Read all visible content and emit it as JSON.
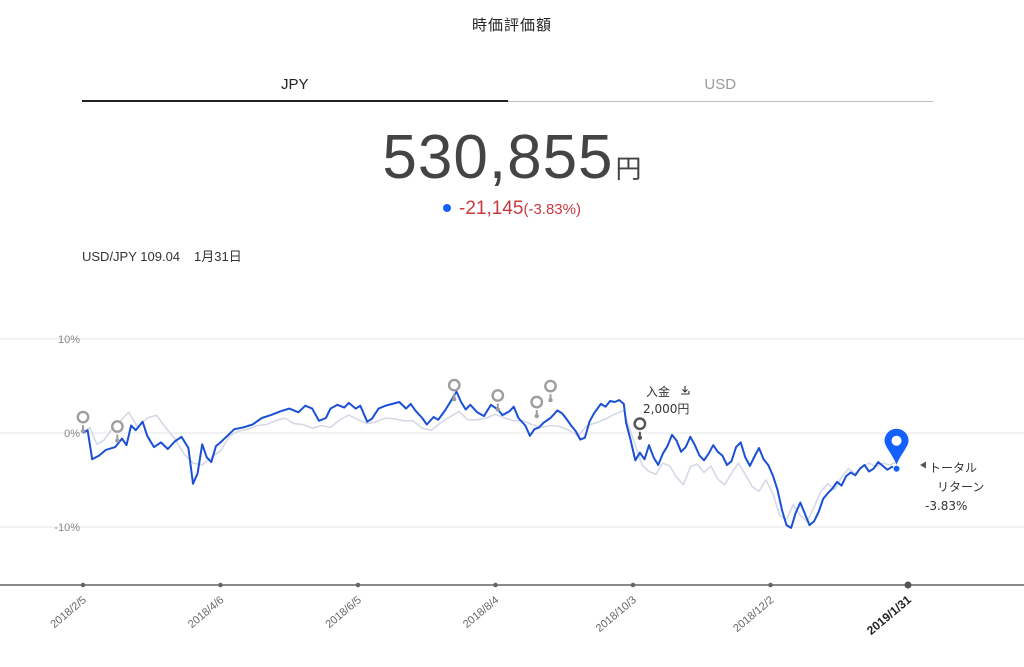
{
  "page_title": "時価評価額",
  "tabs": [
    {
      "label": "JPY",
      "active": true
    },
    {
      "label": "USD",
      "active": false
    }
  ],
  "valuation": {
    "amount": "530,855",
    "unit": "円",
    "change": "-21,145",
    "change_pct": "(-3.83%)"
  },
  "fx": {
    "pair": "USD/JPY 109.04",
    "date": "1月31日"
  },
  "colors": {
    "portfolio_line": "#1a4fd6",
    "benchmark_line": "#d5d9e6",
    "negative": "#c8383f",
    "marker_gray": "#9e9e9e",
    "marker_dark": "#555555",
    "marker_current": "#1460ff"
  },
  "annotations": {
    "deposit_label": "入金",
    "deposit_amount": "2,000円",
    "total_return_line1": "トータル",
    "total_return_line2": "リターン",
    "total_return_value": "-3.83%"
  },
  "chart_data": {
    "type": "line",
    "ylim": [
      -15,
      10
    ],
    "y_ticks": [
      {
        "value": 10,
        "label": "10%"
      },
      {
        "value": 0,
        "label": "0%"
      },
      {
        "value": -10,
        "label": "-10%"
      }
    ],
    "x_range": [
      0,
      360
    ],
    "x_ticks": [
      {
        "x": 0,
        "label": "2018/2/5",
        "bold": false
      },
      {
        "x": 60,
        "label": "2018/4/6",
        "bold": false
      },
      {
        "x": 120,
        "label": "2018/6/5",
        "bold": false
      },
      {
        "x": 180,
        "label": "2018/8/4",
        "bold": false
      },
      {
        "x": 240,
        "label": "2018/10/3",
        "bold": false
      },
      {
        "x": 300,
        "label": "2018/12/2",
        "bold": false
      },
      {
        "x": 360,
        "label": "2019/1/31",
        "bold": true
      }
    ],
    "series": [
      {
        "role": "portfolio",
        "points": [
          [
            0,
            0
          ],
          [
            2,
            0.3
          ],
          [
            4,
            -2.8
          ],
          [
            7,
            -2.4
          ],
          [
            10,
            -1.8
          ],
          [
            14,
            -1.5
          ],
          [
            17,
            -0.6
          ],
          [
            19,
            -1.3
          ],
          [
            21,
            0.8
          ],
          [
            23,
            0.3
          ],
          [
            26,
            1.2
          ],
          [
            28,
            -0.3
          ],
          [
            31,
            -1.5
          ],
          [
            34,
            -1.0
          ],
          [
            37,
            -1.7
          ],
          [
            40,
            -0.9
          ],
          [
            43,
            -0.4
          ],
          [
            46,
            -1.6
          ],
          [
            48,
            -5.4
          ],
          [
            50,
            -4.3
          ],
          [
            52,
            -1.2
          ],
          [
            54,
            -2.6
          ],
          [
            56,
            -3.1
          ],
          [
            58,
            -1.4
          ],
          [
            60,
            -1.0
          ],
          [
            63,
            -0.3
          ],
          [
            66,
            0.4
          ],
          [
            70,
            0.6
          ],
          [
            74,
            0.9
          ],
          [
            78,
            1.6
          ],
          [
            82,
            1.9
          ],
          [
            86,
            2.3
          ],
          [
            90,
            2.6
          ],
          [
            94,
            2.2
          ],
          [
            97,
            2.9
          ],
          [
            100,
            2.6
          ],
          [
            103,
            1.3
          ],
          [
            106,
            1.6
          ],
          [
            108,
            2.6
          ],
          [
            111,
            3.0
          ],
          [
            114,
            2.7
          ],
          [
            116,
            3.2
          ],
          [
            119,
            2.6
          ],
          [
            121,
            2.9
          ],
          [
            124,
            1.2
          ],
          [
            126,
            1.5
          ],
          [
            129,
            2.6
          ],
          [
            132,
            2.9
          ],
          [
            135,
            3.1
          ],
          [
            138,
            3.3
          ],
          [
            141,
            2.6
          ],
          [
            143,
            3.1
          ],
          [
            145,
            2.4
          ],
          [
            148,
            1.6
          ],
          [
            150,
            0.9
          ],
          [
            153,
            1.7
          ],
          [
            155,
            1.4
          ],
          [
            158,
            2.4
          ],
          [
            161,
            3.6
          ],
          [
            163,
            4.4
          ],
          [
            165,
            3.3
          ],
          [
            167,
            2.5
          ],
          [
            169,
            3.0
          ],
          [
            172,
            2.2
          ],
          [
            175,
            1.8
          ],
          [
            178,
            3.0
          ],
          [
            181,
            2.5
          ],
          [
            183,
            1.9
          ],
          [
            186,
            2.3
          ],
          [
            188,
            2.8
          ],
          [
            190,
            1.6
          ],
          [
            193,
            0.8
          ],
          [
            195,
            -0.3
          ],
          [
            197,
            0.4
          ],
          [
            199,
            0.6
          ],
          [
            201,
            1.1
          ],
          [
            204,
            1.6
          ],
          [
            207,
            2.4
          ],
          [
            209,
            2.1
          ],
          [
            211,
            1.5
          ],
          [
            213,
            0.8
          ],
          [
            215,
            0.2
          ],
          [
            217,
            -0.7
          ],
          [
            219,
            -0.5
          ],
          [
            221,
            1.2
          ],
          [
            223,
            2.1
          ],
          [
            226,
            3.1
          ],
          [
            228,
            2.8
          ],
          [
            230,
            3.4
          ],
          [
            232,
            3.3
          ],
          [
            234,
            3.5
          ],
          [
            236,
            3.1
          ],
          [
            237,
            1.1
          ],
          [
            239,
            -0.8
          ],
          [
            241,
            -2.9
          ],
          [
            243,
            -2.1
          ],
          [
            245,
            -2.8
          ],
          [
            247,
            -1.3
          ],
          [
            249,
            -2.6
          ],
          [
            251,
            -3.4
          ],
          [
            253,
            -2.2
          ],
          [
            255,
            -1.4
          ],
          [
            257,
            -0.2
          ],
          [
            259,
            -0.8
          ],
          [
            261,
            -2.0
          ],
          [
            263,
            -1.5
          ],
          [
            265,
            -0.4
          ],
          [
            267,
            -1.3
          ],
          [
            269,
            -2.4
          ],
          [
            271,
            -2.9
          ],
          [
            273,
            -2.2
          ],
          [
            275,
            -1.3
          ],
          [
            277,
            -2.0
          ],
          [
            279,
            -2.4
          ],
          [
            281,
            -3.4
          ],
          [
            283,
            -3.0
          ],
          [
            285,
            -1.5
          ],
          [
            287,
            -1.0
          ],
          [
            289,
            -2.6
          ],
          [
            291,
            -3.5
          ],
          [
            293,
            -2.5
          ],
          [
            295,
            -1.6
          ],
          [
            297,
            -2.8
          ],
          [
            299,
            -3.4
          ],
          [
            301,
            -4.5
          ],
          [
            303,
            -6.0
          ],
          [
            305,
            -8.2
          ],
          [
            307,
            -9.8
          ],
          [
            309,
            -10.1
          ],
          [
            311,
            -8.5
          ],
          [
            313,
            -7.4
          ],
          [
            315,
            -8.6
          ],
          [
            317,
            -9.8
          ],
          [
            319,
            -9.4
          ],
          [
            321,
            -8.4
          ],
          [
            323,
            -7.0
          ],
          [
            325,
            -6.4
          ],
          [
            327,
            -5.9
          ],
          [
            329,
            -5.2
          ],
          [
            331,
            -5.6
          ],
          [
            333,
            -4.6
          ],
          [
            335,
            -4.2
          ],
          [
            337,
            -4.5
          ],
          [
            339,
            -3.8
          ],
          [
            341,
            -3.4
          ],
          [
            343,
            -4.1
          ],
          [
            345,
            -3.8
          ],
          [
            347,
            -3.1
          ],
          [
            349,
            -3.5
          ],
          [
            351,
            -3.9
          ],
          [
            353,
            -3.6
          ],
          [
            355,
            -3.8
          ]
        ]
      },
      {
        "role": "benchmark",
        "points": [
          [
            0,
            0
          ],
          [
            3,
            0.6
          ],
          [
            6,
            -1.2
          ],
          [
            9,
            -0.8
          ],
          [
            12,
            0.2
          ],
          [
            16,
            1.2
          ],
          [
            20,
            2.2
          ],
          [
            24,
            0.6
          ],
          [
            28,
            1.6
          ],
          [
            32,
            1.9
          ],
          [
            36,
            0.6
          ],
          [
            40,
            -0.6
          ],
          [
            44,
            -2.2
          ],
          [
            48,
            -3.2
          ],
          [
            52,
            -3.4
          ],
          [
            56,
            -2.6
          ],
          [
            60,
            -1.9
          ],
          [
            64,
            -0.3
          ],
          [
            68,
            0.2
          ],
          [
            72,
            0.4
          ],
          [
            76,
            0.8
          ],
          [
            80,
            0.9
          ],
          [
            84,
            1.3
          ],
          [
            88,
            1.6
          ],
          [
            92,
            1.0
          ],
          [
            96,
            0.9
          ],
          [
            100,
            0.5
          ],
          [
            104,
            0.8
          ],
          [
            108,
            0.6
          ],
          [
            112,
            1.4
          ],
          [
            116,
            1.9
          ],
          [
            120,
            1.4
          ],
          [
            124,
            1.0
          ],
          [
            128,
            1.2
          ],
          [
            132,
            1.6
          ],
          [
            136,
            1.5
          ],
          [
            140,
            1.3
          ],
          [
            144,
            1.3
          ],
          [
            148,
            0.5
          ],
          [
            152,
            0.3
          ],
          [
            156,
            1.1
          ],
          [
            160,
            1.7
          ],
          [
            164,
            2.3
          ],
          [
            168,
            1.4
          ],
          [
            172,
            1.4
          ],
          [
            176,
            1.6
          ],
          [
            180,
            2.0
          ],
          [
            184,
            1.6
          ],
          [
            188,
            1.3
          ],
          [
            192,
            1.3
          ],
          [
            196,
            0.9
          ],
          [
            200,
            0.6
          ],
          [
            204,
            0.8
          ],
          [
            208,
            0.7
          ],
          [
            212,
            0.3
          ],
          [
            216,
            -0.3
          ],
          [
            220,
            0.8
          ],
          [
            224,
            1.1
          ],
          [
            228,
            1.5
          ],
          [
            232,
            2.0
          ],
          [
            236,
            2.4
          ],
          [
            238,
            0.8
          ],
          [
            241,
            -1.3
          ],
          [
            244,
            -3.4
          ],
          [
            247,
            -4.1
          ],
          [
            250,
            -4.4
          ],
          [
            253,
            -3.2
          ],
          [
            256,
            -3.5
          ],
          [
            259,
            -4.7
          ],
          [
            262,
            -5.5
          ],
          [
            265,
            -3.6
          ],
          [
            268,
            -3.3
          ],
          [
            271,
            -4.2
          ],
          [
            274,
            -3.5
          ],
          [
            277,
            -4.9
          ],
          [
            280,
            -5.5
          ],
          [
            283,
            -4.3
          ],
          [
            286,
            -3.2
          ],
          [
            289,
            -4.4
          ],
          [
            292,
            -5.7
          ],
          [
            295,
            -6.2
          ],
          [
            298,
            -5.0
          ],
          [
            301,
            -6.4
          ],
          [
            304,
            -8.8
          ],
          [
            307,
            -9.2
          ],
          [
            310,
            -7.6
          ],
          [
            313,
            -8.8
          ],
          [
            316,
            -9.4
          ],
          [
            319,
            -7.9
          ],
          [
            322,
            -6.2
          ],
          [
            325,
            -5.4
          ],
          [
            328,
            -6.0
          ],
          [
            331,
            -4.7
          ],
          [
            334,
            -3.8
          ],
          [
            337,
            -4.3
          ],
          [
            340,
            -3.6
          ],
          [
            343,
            -3.2
          ],
          [
            346,
            -3.6
          ],
          [
            349,
            -3.2
          ],
          [
            352,
            -3.4
          ],
          [
            355,
            -3.1
          ]
        ]
      }
    ],
    "markers": [
      {
        "x": 0,
        "y": 0.2,
        "style": "gray"
      },
      {
        "x": 15,
        "y": -0.8,
        "style": "gray"
      },
      {
        "x": 162,
        "y": 3.6,
        "style": "gray"
      },
      {
        "x": 181,
        "y": 2.5,
        "style": "gray"
      },
      {
        "x": 198,
        "y": 1.8,
        "style": "gray"
      },
      {
        "x": 204,
        "y": 3.5,
        "style": "gray"
      },
      {
        "x": 243,
        "y": -0.5,
        "style": "dark"
      },
      {
        "x": 355,
        "y": -3.8,
        "style": "current"
      }
    ]
  }
}
